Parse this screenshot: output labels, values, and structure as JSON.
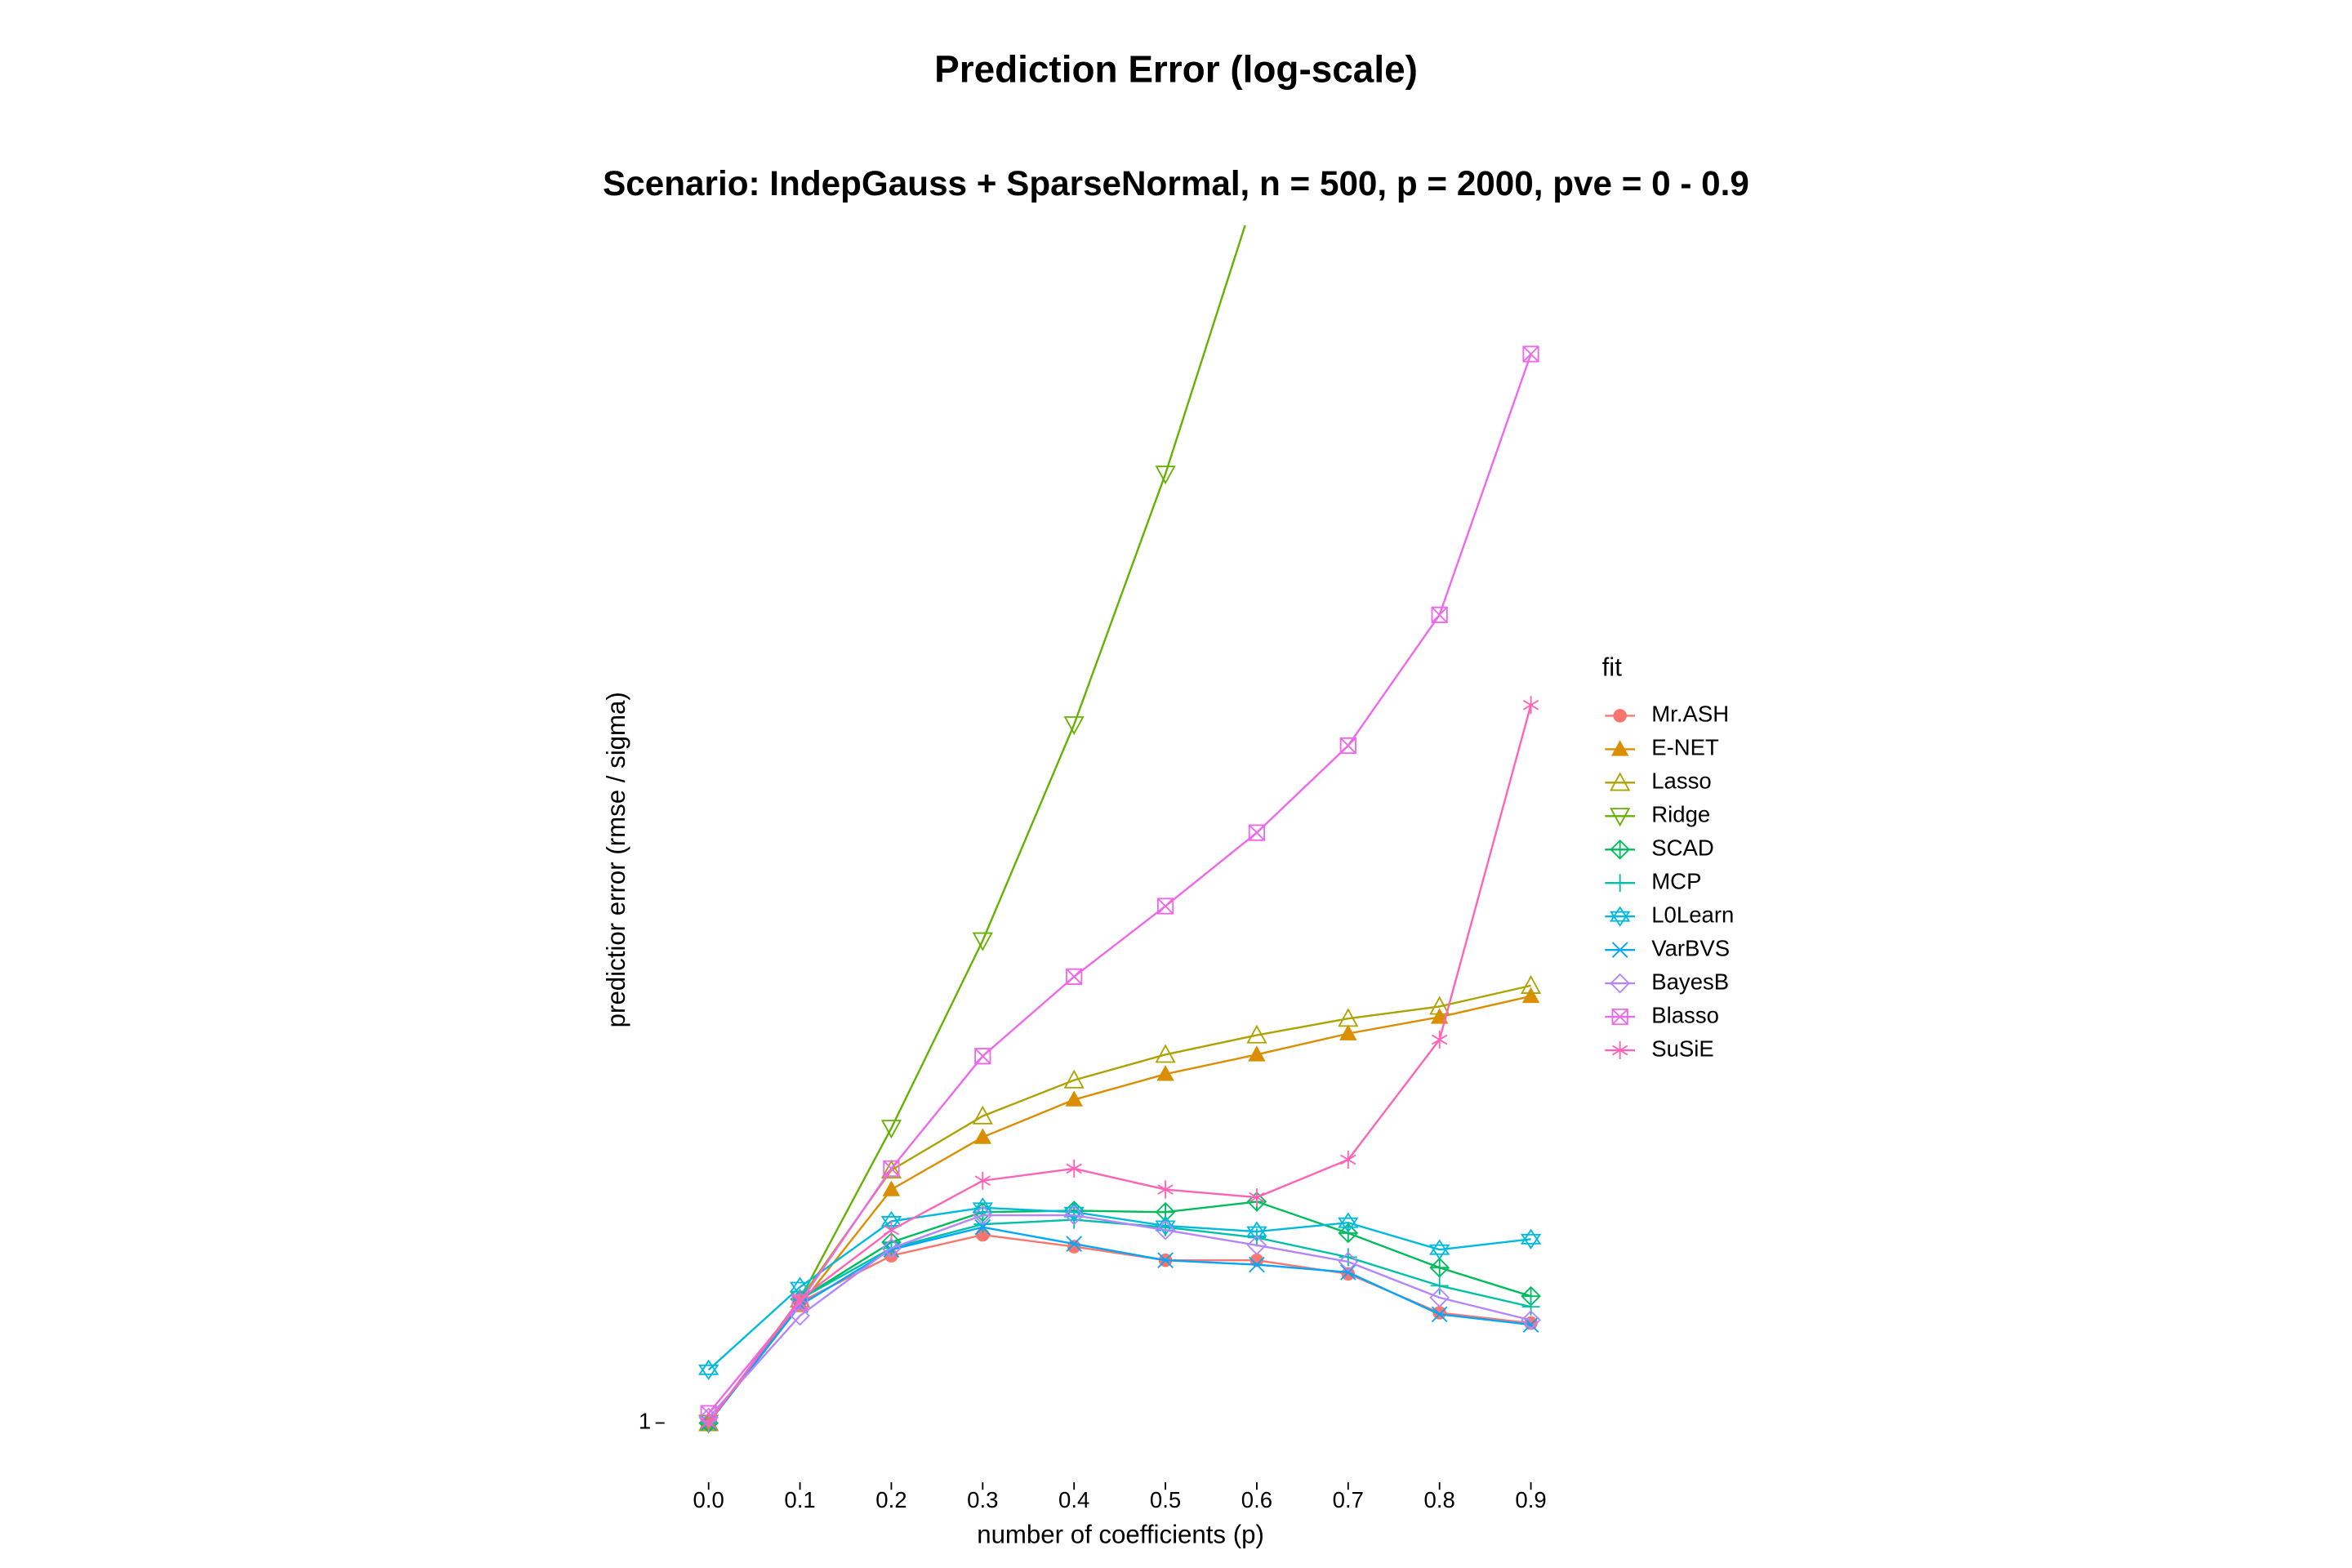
{
  "chart_data": {
    "type": "line",
    "title": "Prediction Error (log-scale)",
    "subtitle": "Scenario: IndepGauss + SparseNormal, n = 500, p = 2000, pve = 0 - 0.9",
    "x_label": "number of coefficients (p)",
    "y_label": "predictior error (rmse / sigma)",
    "legend_title": "fit",
    "x": [
      0,
      0.1,
      0.2,
      0.3,
      0.4,
      0.5,
      0.6,
      0.7,
      0.8,
      0.9
    ],
    "xlim": [
      -0.045,
      0.945
    ],
    "xticks": [
      {
        "value": 0,
        "label": "0.0"
      },
      0.1,
      0.2,
      0.3,
      0.4,
      0.5,
      0.6,
      0.7,
      0.8,
      0.9
    ],
    "ylim": [
      0.85,
      35
    ],
    "yticks": [
      1
    ],
    "log_y": true,
    "grid": false,
    "series": [
      {
        "name": "Mr.ASH",
        "color": "#F8766D",
        "marker": "circle",
        "values": [
          1.0,
          1.431,
          1.643,
          1.748,
          1.688,
          1.621,
          1.621,
          1.557,
          1.387,
          1.345
        ]
      },
      {
        "name": "E-NET",
        "color": "#DB8E00",
        "marker": "triangle-filled",
        "values": [
          1.0,
          1.418,
          2.0,
          2.336,
          2.611,
          2.817,
          2.985,
          3.177,
          3.337,
          3.55
        ]
      },
      {
        "name": "Lasso",
        "color": "#AEA200",
        "marker": "triangle",
        "values": [
          1.0,
          1.444,
          2.118,
          2.487,
          2.767,
          2.985,
          3.162,
          3.322,
          3.443,
          3.663
        ]
      },
      {
        "name": "Ridge",
        "color": "#64B200",
        "marker": "triangle-down",
        "values": [
          1.0,
          1.444,
          2.4,
          4.187,
          7.951,
          16.73,
          39.0,
          null,
          null,
          null
        ]
      },
      {
        "name": "SCAD",
        "color": "#00BD5C",
        "marker": "diamond-plus",
        "values": [
          1.0,
          1.444,
          1.71,
          1.87,
          1.878,
          1.87,
          1.929,
          1.757,
          1.586,
          1.457
        ]
      },
      {
        "name": "MCP",
        "color": "#00C1A7",
        "marker": "plus",
        "values": [
          1.0,
          1.444,
          1.68,
          1.804,
          1.828,
          1.788,
          1.734,
          1.636,
          1.503,
          1.412
        ]
      },
      {
        "name": "L0Learn",
        "color": "#00BADE",
        "marker": "star",
        "values": [
          1.171,
          1.497,
          1.82,
          1.895,
          1.87,
          1.796,
          1.765,
          1.812,
          1.673,
          1.726
        ]
      },
      {
        "name": "VarBVS",
        "color": "#00A6FF",
        "marker": "cross",
        "values": [
          1.0,
          1.418,
          1.673,
          1.788,
          1.702,
          1.621,
          1.6,
          1.564,
          1.381,
          1.339
        ]
      },
      {
        "name": "BayesB",
        "color": "#B385FF",
        "marker": "diamond",
        "values": [
          1.016,
          1.375,
          1.68,
          1.853,
          1.853,
          1.773,
          1.695,
          1.614,
          1.451,
          1.357
        ]
      },
      {
        "name": "Blasso",
        "color": "#EF67EB",
        "marker": "square-x",
        "values": [
          1.029,
          1.431,
          2.128,
          2.971,
          3.762,
          4.638,
          5.768,
          7.468,
          11.01,
          23.88
        ]
      },
      {
        "name": "SuSiE",
        "color": "#FF63B6",
        "marker": "asterisk",
        "values": [
          1.0,
          1.444,
          1.773,
          2.053,
          2.128,
          2.0,
          1.954,
          2.185,
          3.12,
          8.425
        ]
      }
    ]
  }
}
